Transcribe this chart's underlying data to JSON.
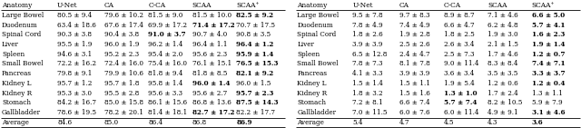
{
  "left_table": {
    "header": [
      "Anatomy",
      "U-Net",
      "CA",
      "C-CA",
      "SCAA",
      "SCAA⁺"
    ],
    "rows": [
      [
        "Large Bowel",
        "80.5 ± 9.4",
        "79.6 ± 10.2",
        "81.5 ± 9.0",
        "81.5 ± 10.0",
        "82.5 ± 9.2"
      ],
      [
        "Duodenum",
        "63.4 ± 18.6",
        "67.6 ± 17.4",
        "69.9 ± 17.2",
        "71.4 ± 17.2",
        "70.7 ± 17.5"
      ],
      [
        "Spinal Cord",
        "90.3 ± 3.8",
        "90.4 ± 3.8",
        "91.0 ± 3.7",
        "90.7 ± 4.0",
        "90.8 ± 3.5"
      ],
      [
        "Liver",
        "95.5 ± 1.9",
        "96.0 ± 1.9",
        "96.2 ± 1.4",
        "96.4 ± 1.1",
        "96.4 ± 1.2"
      ],
      [
        "Spleen",
        "94.6 ± 3.1",
        "95.2 ± 2.3",
        "95.4 ± 2.0",
        "95.6 ± 2.3",
        "95.9 ± 1.4"
      ],
      [
        "Small Bowel",
        "72.2 ± 16.2",
        "72.4 ± 16.0",
        "75.4 ± 16.0",
        "76.1 ± 15.1",
        "76.5 ± 15.3"
      ],
      [
        "Pancreas",
        "79.8 ± 9.1",
        "79.9 ± 10.6",
        "81.8 ± 9.4",
        "81.8 ± 8.5",
        "82.1 ± 9.2"
      ],
      [
        "Kidney L",
        "95.7 ± 1.2",
        "95.7 ± 1.8",
        "95.8 ± 1.4",
        "96.0 ± 1.4",
        "96.0 ± 1.5"
      ],
      [
        "Kidney R",
        "95.3 ± 3.0",
        "95.5 ± 2.8",
        "95.6 ± 3.3",
        "95.6 ± 2.7",
        "95.7 ± 2.3"
      ],
      [
        "Stomach",
        "84.2 ± 16.7",
        "85.0 ± 15.8",
        "86.1 ± 15.6",
        "86.8 ± 13.6",
        "87.5 ± 14.3"
      ],
      [
        "Gallbladder",
        "78.6 ± 19.5",
        "78.2 ± 20.1",
        "81.4 ± 18.1",
        "82.7 ± 17.2",
        "82.2 ± 17.7"
      ],
      [
        "Average",
        "84.6",
        "85.0",
        "86.4",
        "86.8",
        "86.9"
      ]
    ],
    "bold_cells": {
      "0": [
        5
      ],
      "1": [
        4
      ],
      "2": [
        3
      ],
      "3": [
        5
      ],
      "4": [
        5
      ],
      "5": [
        5
      ],
      "6": [
        5
      ],
      "7": [
        4
      ],
      "8": [
        5
      ],
      "9": [
        5
      ],
      "10": [
        4
      ],
      "11": [
        5
      ]
    }
  },
  "right_table": {
    "header": [
      "Anatomy",
      "U-Net",
      "CA",
      "C-CA",
      "SCAA",
      "SCAA⁺"
    ],
    "rows": [
      [
        "Large Bowel",
        "9.5 ± 7.8",
        "9.7 ± 8.3",
        "8.9 ± 8.7",
        "7.1 ± 4.6",
        "6.6 ± 5.0"
      ],
      [
        "Duodenum",
        "7.8 ± 4.9",
        "7.4 ± 4.9",
        "6.6 ± 4.7",
        "6.2 ± 4.8",
        "5.7 ± 4.1"
      ],
      [
        "Spinal Cord",
        "1.8 ± 2.6",
        "1.9 ± 2.8",
        "1.8 ± 2.5",
        "1.9 ± 3.0",
        "1.6 ± 2.3"
      ],
      [
        "Liver",
        "3.9 ± 3.9",
        "2.5 ± 2.6",
        "2.6 ± 3.4",
        "2.1 ± 1.5",
        "1.9 ± 1.4"
      ],
      [
        "Spleen",
        "6.5 ± 12.8",
        "2.4 ± 4.7",
        "2.5 ± 7.3",
        "1.7 ± 4.6",
        "1.2 ± 0.7"
      ],
      [
        "Small Bowel",
        "7.8 ± 7.3",
        "8.1 ± 7.8",
        "9.0 ± 11.4",
        "8.3 ± 8.4",
        "7.4 ± 7.1"
      ],
      [
        "Pancreas",
        "4.1 ± 3.3",
        "3.9 ± 3.9",
        "3.6 ± 3.4",
        "3.5 ± 3.5",
        "3.3 ± 3.7"
      ],
      [
        "Kidney L",
        "1.5 ± 1.4",
        "1.5 ± 1.1",
        "1.9 ± 5.4",
        "1.2 ± 0.6",
        "1.2 ± 0.4"
      ],
      [
        "Kidney R",
        "1.8 ± 3.2",
        "1.5 ± 1.6",
        "1.3 ± 1.0",
        "1.7 ± 2.4",
        "1.3 ± 1.1"
      ],
      [
        "Stomach",
        "7.2 ± 8.1",
        "6.6 ± 7.4",
        "5.7 ± 7.4",
        "8.2 ± 10.5",
        "5.9 ± 7.9"
      ],
      [
        "Gallbladder",
        "7.0 ± 11.5",
        "6.0 ± 7.6",
        "6.0 ± 11.4",
        "4.9 ± 9.1",
        "3.1 ± 4.6"
      ],
      [
        "Average",
        "5.4",
        "4.7",
        "4.5",
        "4.3",
        "3.6"
      ]
    ],
    "bold_cells": {
      "0": [
        5
      ],
      "1": [
        5
      ],
      "2": [
        5
      ],
      "3": [
        5
      ],
      "4": [
        5
      ],
      "5": [
        5
      ],
      "6": [
        5
      ],
      "7": [
        5
      ],
      "8": [
        3
      ],
      "9": [
        3
      ],
      "10": [
        5
      ],
      "11": [
        5
      ]
    }
  },
  "font_size": 5.2,
  "header_font_size": 5.4,
  "bg_color": "#ffffff",
  "line_color": "#000000",
  "text_color": "#000000"
}
